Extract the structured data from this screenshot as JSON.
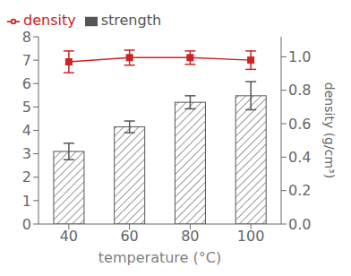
{
  "chart_data": {
    "type": "bar",
    "x_label": "temperature (°C)",
    "y2_label": "density (g/cm³)",
    "categories": [
      "40",
      "60",
      "80",
      "100"
    ],
    "series": [
      {
        "name": "strength",
        "type": "bar",
        "color": "#555555",
        "values": [
          3.1,
          4.15,
          5.2,
          5.48
        ],
        "errors": [
          0.35,
          0.25,
          0.28,
          0.6
        ]
      },
      {
        "name": "density",
        "type": "line",
        "axis": "y2",
        "color": "#cc2222",
        "marker": "square",
        "values": [
          0.97,
          0.995,
          0.995,
          0.98
        ],
        "errors": [
          0.065,
          0.045,
          0.04,
          0.055
        ]
      }
    ],
    "ylim": [
      0,
      8
    ],
    "yticks": [
      0,
      1,
      2,
      3,
      4,
      5,
      6,
      7,
      8
    ],
    "y2lim": [
      0.0,
      1.12
    ],
    "y2ticks": [
      {
        "value": 0,
        "label": "0.0"
      },
      0.2,
      0.4,
      0.6,
      0.8,
      {
        "value": 1,
        "label": "1.0"
      }
    ],
    "legend": "upper left",
    "grid": false
  }
}
